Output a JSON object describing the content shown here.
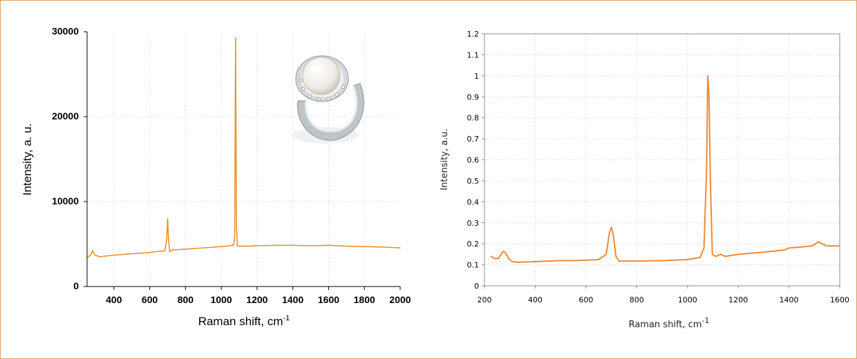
{
  "colors": {
    "frame": "#d9a066",
    "series_left": "#e8912a",
    "series_right": "#ef8a33"
  },
  "inset_image": {
    "icon": "pearl-ring-image"
  },
  "chart_data": [
    {
      "type": "line",
      "title": "",
      "xlabel": "Raman shift, cm",
      "xlabel_superscript": "-1",
      "ylabel": "Intensity, a. u.",
      "xlim": [
        250,
        2000
      ],
      "ylim": [
        0,
        30000
      ],
      "xticks": [
        "400",
        "600",
        "800",
        "1000",
        "1200",
        "1400",
        "1600",
        "1800",
        "2000"
      ],
      "yticks": [
        "0",
        "10000",
        "20000",
        "30000"
      ],
      "grid": true,
      "x": [
        250,
        270,
        280,
        295,
        320,
        400,
        500,
        600,
        650,
        685,
        695,
        700,
        705,
        712,
        725,
        800,
        900,
        1000,
        1050,
        1070,
        1075,
        1080,
        1085,
        1090,
        1100,
        1150,
        1200,
        1300,
        1400,
        1500,
        1600,
        1700,
        1800,
        1900,
        2000
      ],
      "values": [
        3400,
        3700,
        4200,
        3700,
        3500,
        3700,
        3850,
        4000,
        4150,
        4200,
        5600,
        8000,
        5600,
        4100,
        4300,
        4400,
        4550,
        4700,
        4800,
        4900,
        6200,
        29300,
        7200,
        4800,
        4750,
        4750,
        4800,
        4850,
        4850,
        4800,
        4850,
        4750,
        4700,
        4650,
        4550
      ]
    },
    {
      "type": "line",
      "title": "",
      "xlabel": "Raman shift, cm",
      "xlabel_superscript": "-1",
      "ylabel": "Intensity, a.u.",
      "xlim": [
        200,
        1600
      ],
      "ylim": [
        0,
        1.2
      ],
      "xticks": [
        "200",
        "400",
        "600",
        "800",
        "1000",
        "1200",
        "1400",
        "1600"
      ],
      "yticks": [
        "0",
        "0.1",
        "0.2",
        "0.3",
        "0.4",
        "0.5",
        "0.6",
        "0.7",
        "0.8",
        "0.9",
        "1",
        "1.1",
        "1.2"
      ],
      "grid": true,
      "x": [
        225,
        240,
        255,
        265,
        275,
        285,
        295,
        310,
        330,
        400,
        450,
        500,
        550,
        600,
        650,
        680,
        692,
        700,
        708,
        718,
        730,
        800,
        900,
        1000,
        1050,
        1065,
        1075,
        1080,
        1085,
        1090,
        1098,
        1110,
        1130,
        1150,
        1200,
        1300,
        1380,
        1400,
        1450,
        1490,
        1505,
        1515,
        1530,
        1550,
        1600
      ],
      "values": [
        0.14,
        0.13,
        0.13,
        0.15,
        0.165,
        0.155,
        0.13,
        0.115,
        0.112,
        0.115,
        0.118,
        0.12,
        0.12,
        0.122,
        0.125,
        0.15,
        0.25,
        0.28,
        0.24,
        0.14,
        0.118,
        0.118,
        0.12,
        0.125,
        0.135,
        0.18,
        0.55,
        1.0,
        0.9,
        0.5,
        0.15,
        0.14,
        0.15,
        0.14,
        0.15,
        0.16,
        0.17,
        0.18,
        0.185,
        0.19,
        0.2,
        0.21,
        0.2,
        0.19,
        0.19
      ]
    }
  ]
}
